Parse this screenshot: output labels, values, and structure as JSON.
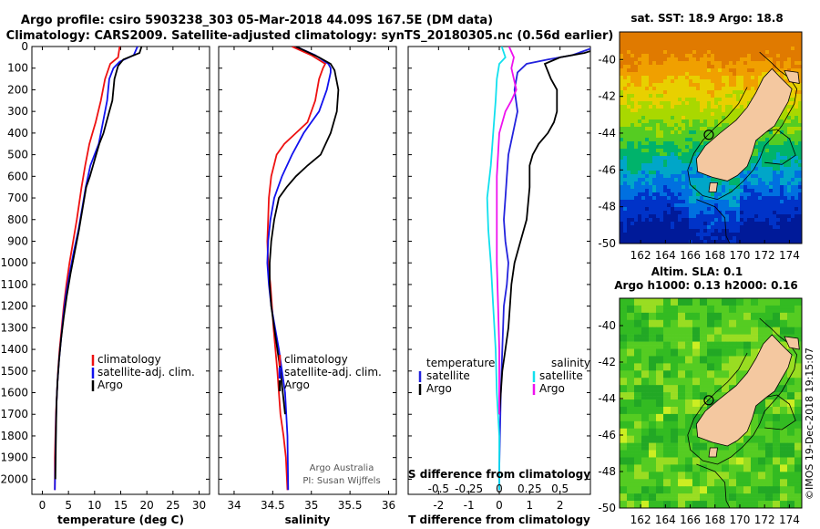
{
  "title": {
    "line1": "Argo profile: csiro 5903238_303 05-Mar-2018 44.09S 167.5E (DM data)",
    "line2": "Climatology: CARS2009. Satellite-adjusted climatology: synTS_20180305.nc (0.56d earlier)"
  },
  "credit": {
    "line1": "Argo Australia",
    "line2": "PI: Susan Wijffels"
  },
  "watermark": "©IMOS 19-Dec-2018 19:15:07",
  "colors": {
    "climatology": "#ee1111",
    "satellite": "#1111ee",
    "argo": "#000000",
    "sat_temp": "#2222dd",
    "sat_sal": "#11e0ee",
    "argo_sal": "#ee11ee"
  },
  "chart_data": [
    {
      "type": "line",
      "title": "",
      "xlabel": "temperature (deg C)",
      "ylabel": "",
      "xlim": [
        -2,
        32
      ],
      "ylim": [
        2070,
        0
      ],
      "y_inverted": true,
      "xticks": [
        0,
        5,
        10,
        15,
        20,
        25,
        30
      ],
      "yticks": [
        0,
        100,
        200,
        300,
        400,
        500,
        600,
        700,
        800,
        900,
        1000,
        1100,
        1200,
        1300,
        1400,
        1500,
        1600,
        1700,
        1800,
        1900,
        2000
      ],
      "legend": {
        "placement": "lower-center",
        "entries": [
          "climatology",
          "satellite-adj. clim.",
          "Argo"
        ]
      },
      "series": [
        {
          "name": "climatology",
          "color": "#ee1111",
          "x": [
            14.8,
            14.5,
            13.0,
            12.0,
            11.2,
            10.2,
            9.6,
            9.0,
            8.2,
            7.5,
            6.6,
            5.9,
            5.2,
            4.6,
            4.1,
            3.7,
            3.3,
            3.0,
            2.8,
            2.6,
            2.5,
            2.4,
            2.4
          ],
          "y": [
            0,
            50,
            80,
            150,
            250,
            350,
            400,
            450,
            550,
            650,
            800,
            900,
            1000,
            1100,
            1200,
            1300,
            1400,
            1500,
            1600,
            1700,
            1800,
            1900,
            2050
          ]
        },
        {
          "name": "satellite-adj. clim.",
          "color": "#1111ee",
          "x": [
            18.2,
            17.5,
            14.8,
            13.6,
            12.8,
            12.4,
            11.6,
            10.8,
            10.0,
            9.2,
            8.3,
            7.6,
            6.9,
            6.0,
            5.2,
            4.5,
            4.0,
            3.6,
            3.2,
            2.9,
            2.7,
            2.6,
            2.5,
            2.4
          ],
          "y": [
            0,
            40,
            70,
            100,
            150,
            250,
            350,
            450,
            500,
            550,
            650,
            750,
            850,
            950,
            1050,
            1150,
            1250,
            1350,
            1450,
            1550,
            1650,
            1750,
            1900,
            2050
          ]
        },
        {
          "name": "Argo",
          "color": "#000000",
          "x": [
            19.0,
            18.6,
            15.5,
            14.5,
            13.8,
            13.4,
            12.6,
            11.7,
            10.9,
            10.3,
            9.7,
            9.1,
            8.4,
            7.7,
            7.0,
            6.2,
            5.4,
            4.7,
            4.1,
            3.6,
            3.2,
            2.9,
            2.7,
            2.6,
            2.5
          ],
          "y": [
            0,
            30,
            60,
            90,
            150,
            250,
            320,
            400,
            450,
            500,
            550,
            600,
            650,
            750,
            850,
            950,
            1050,
            1150,
            1250,
            1350,
            1450,
            1550,
            1650,
            1800,
            2000
          ]
        }
      ]
    },
    {
      "type": "line",
      "title": "",
      "xlabel": "salinity",
      "ylabel": "",
      "xlim": [
        33.8,
        36.1
      ],
      "ylim": [
        2070,
        0
      ],
      "y_inverted": true,
      "xticks": [
        34,
        34.5,
        35,
        35.5,
        36
      ],
      "xticklabels": [
        "34",
        "34.5",
        "35",
        "35.5",
        "36"
      ],
      "legend": {
        "placement": "lower-center",
        "entries": [
          "climatology",
          "satellite-adj. clim.",
          "Argo"
        ]
      },
      "series": [
        {
          "name": "climatology",
          "color": "#ee1111",
          "x": [
            34.75,
            35.0,
            35.18,
            35.15,
            35.1,
            35.05,
            34.95,
            34.8,
            34.65,
            34.55,
            34.48,
            34.45,
            34.44,
            34.43,
            34.44,
            34.47,
            34.51,
            34.56,
            34.6,
            34.64,
            34.67,
            34.69
          ],
          "y": [
            0,
            40,
            80,
            100,
            150,
            250,
            350,
            400,
            450,
            500,
            600,
            700,
            800,
            900,
            1000,
            1100,
            1300,
            1500,
            1700,
            1800,
            1900,
            2050
          ]
        },
        {
          "name": "satellite-adj. clim.",
          "color": "#1111ee",
          "x": [
            34.8,
            35.05,
            35.22,
            35.25,
            35.25,
            35.2,
            35.1,
            35.0,
            34.9,
            34.75,
            34.62,
            34.52,
            34.47,
            34.44,
            34.43,
            34.45,
            34.48,
            34.53,
            34.58,
            34.62,
            34.66,
            34.69,
            34.7
          ],
          "y": [
            0,
            40,
            80,
            100,
            120,
            200,
            300,
            350,
            400,
            500,
            600,
            700,
            800,
            900,
            1000,
            1100,
            1200,
            1300,
            1400,
            1500,
            1600,
            1800,
            2050
          ]
        },
        {
          "name": "Argo",
          "color": "#000000",
          "x": [
            34.8,
            35.1,
            35.25,
            35.3,
            35.35,
            35.33,
            35.25,
            35.12,
            34.95,
            34.8,
            34.68,
            34.58,
            34.52,
            34.48,
            34.46,
            34.46,
            34.48,
            34.52,
            34.56,
            34.6,
            34.63,
            34.66
          ],
          "y": [
            0,
            50,
            80,
            110,
            200,
            300,
            400,
            500,
            550,
            600,
            650,
            700,
            800,
            900,
            1000,
            1100,
            1200,
            1300,
            1400,
            1500,
            1600,
            1700
          ]
        }
      ]
    },
    {
      "type": "line",
      "title": "",
      "xlabel": "T difference from climatology",
      "xlabel2": "S difference from climatology",
      "xlim": [
        -3,
        3
      ],
      "ylim": [
        2070,
        0
      ],
      "y_inverted": true,
      "xticks": [
        -2,
        -1,
        0,
        1,
        2
      ],
      "x2lim": [
        -0.75,
        0.75
      ],
      "x2ticks": [
        -0.5,
        -0.25,
        0,
        0.25,
        0.5
      ],
      "x2ticklabels": [
        "-0.5",
        "-0.25",
        "0",
        "0.25",
        "0.5"
      ],
      "legend": {
        "temperature": {
          "header": "temperature",
          "entries": [
            "satellite",
            "Argo"
          ]
        },
        "salinity": {
          "header": "salinity",
          "entries": [
            "satellite",
            "Argo"
          ]
        }
      },
      "series": [
        {
          "name": "satellite",
          "group": "temperature",
          "color": "#2222dd",
          "axis": "T",
          "x": [
            3.2,
            2.4,
            1.6,
            0.9,
            0.6,
            0.5,
            0.6,
            0.45,
            0.3,
            0.25,
            0.2,
            0.15,
            0.2,
            0.3,
            0.25,
            0.15,
            0.1,
            0.05,
            0.02,
            0.0,
            0.0
          ],
          "y": [
            0,
            40,
            60,
            80,
            120,
            200,
            300,
            400,
            500,
            600,
            700,
            800,
            900,
            1000,
            1100,
            1200,
            1400,
            1600,
            1800,
            1950,
            2050
          ]
        },
        {
          "name": "Argo",
          "group": "temperature",
          "color": "#000000",
          "axis": "T",
          "x": [
            3.5,
            2.8,
            2.0,
            1.5,
            1.7,
            1.9,
            1.9,
            1.8,
            1.6,
            1.3,
            1.1,
            1.0,
            1.0,
            0.9,
            0.7,
            0.5,
            0.4,
            0.35,
            0.3,
            0.2,
            0.1,
            0.05,
            0.0
          ],
          "y": [
            0,
            30,
            50,
            80,
            150,
            200,
            300,
            350,
            400,
            450,
            500,
            550,
            650,
            800,
            900,
            1000,
            1100,
            1200,
            1300,
            1400,
            1500,
            1600,
            1700
          ]
        },
        {
          "name": "satellite",
          "group": "salinity",
          "color": "#11e0ee",
          "axis": "S",
          "x": [
            0.02,
            0.05,
            0.0,
            -0.02,
            -0.03,
            -0.05,
            -0.07,
            -0.1,
            -0.09,
            -0.07,
            -0.05,
            -0.03,
            -0.02,
            0.0,
            0.0
          ],
          "y": [
            0,
            50,
            80,
            150,
            250,
            400,
            550,
            700,
            850,
            1000,
            1200,
            1400,
            1600,
            1800,
            2050
          ]
        },
        {
          "name": "Argo",
          "group": "salinity",
          "color": "#ee11ee",
          "axis": "S",
          "x": [
            0.08,
            0.12,
            0.1,
            0.12,
            0.14,
            0.1,
            0.05,
            0.0,
            -0.02,
            -0.02,
            -0.02,
            -0.01,
            0.0,
            0.0
          ],
          "y": [
            0,
            50,
            100,
            150,
            200,
            250,
            300,
            400,
            600,
            800,
            1000,
            1200,
            1400,
            1700
          ]
        }
      ]
    },
    {
      "type": "heatmap",
      "title": "sat. SST: 18.9 Argo: 18.8",
      "xlim": [
        160.3,
        175
      ],
      "ylim": [
        -50,
        -38.5
      ],
      "xticks": [
        162,
        164,
        166,
        168,
        170,
        172,
        174
      ],
      "yticks": [
        -40,
        -42,
        -44,
        -46,
        -48,
        -50
      ],
      "marker": {
        "lon": 167.5,
        "lat": -44.09,
        "label": "Argo float position"
      }
    },
    {
      "type": "heatmap",
      "title": "Altim. SLA: 0.1",
      "subtitle": "Argo h1000: 0.13 h2000: 0.16",
      "xlim": [
        160.3,
        175
      ],
      "ylim": [
        -50,
        -38.5
      ],
      "xticks": [
        162,
        164,
        166,
        168,
        170,
        172,
        174
      ],
      "yticks": [
        -40,
        -42,
        -44,
        -46,
        -48,
        -50
      ],
      "marker": {
        "lon": 167.5,
        "lat": -44.09,
        "label": "Argo float position"
      }
    }
  ]
}
